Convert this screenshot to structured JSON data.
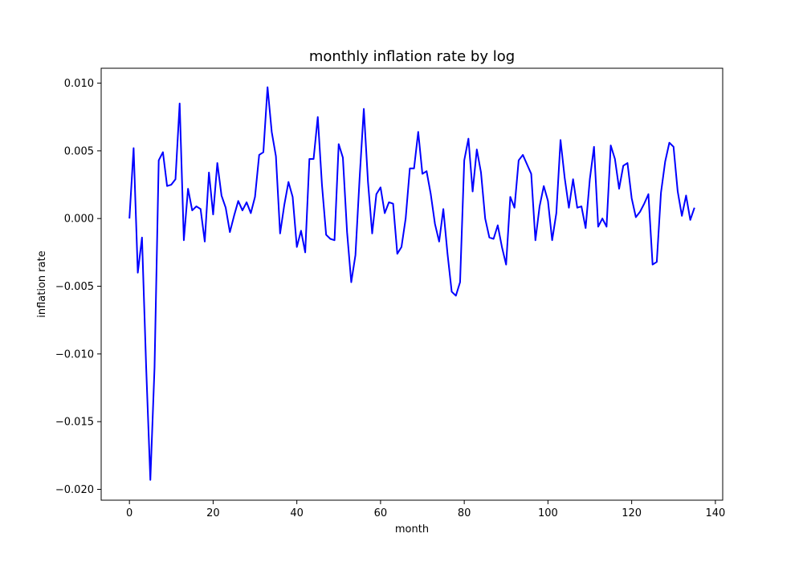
{
  "chart_data": {
    "type": "line",
    "title": "monthly inflation rate by log",
    "xlabel": "month",
    "ylabel": "inflation rate",
    "xlim": [
      -6.75,
      141.75
    ],
    "ylim": [
      -0.0208,
      0.0111
    ],
    "xticks": [
      0,
      20,
      40,
      60,
      80,
      100,
      120,
      140
    ],
    "xtick_labels": [
      "0",
      "20",
      "40",
      "60",
      "80",
      "100",
      "120",
      "140"
    ],
    "yticks": [
      0.01,
      0.005,
      0.0,
      -0.005,
      -0.01,
      -0.015,
      -0.02
    ],
    "ytick_labels": [
      "0.010",
      "0.005",
      "0.000",
      "−0.005",
      "−0.010",
      "−0.015",
      "−0.020"
    ],
    "grid": false,
    "legend": "none",
    "series": [
      {
        "color": "#0000ff",
        "x": [
          0,
          1,
          2,
          3,
          4,
          5,
          6,
          7,
          8,
          9,
          10,
          11,
          12,
          13,
          14,
          15,
          16,
          17,
          18,
          19,
          20,
          21,
          22,
          23,
          24,
          25,
          26,
          27,
          28,
          29,
          30,
          31,
          32,
          33,
          34,
          35,
          36,
          37,
          38,
          39,
          40,
          41,
          42,
          43,
          44,
          45,
          46,
          47,
          48,
          49,
          50,
          51,
          52,
          53,
          54,
          55,
          56,
          57,
          58,
          59,
          60,
          61,
          62,
          63,
          64,
          65,
          66,
          67,
          68,
          69,
          70,
          71,
          72,
          73,
          74,
          75,
          76,
          77,
          78,
          79,
          80,
          81,
          82,
          83,
          84,
          85,
          86,
          87,
          88,
          89,
          90,
          91,
          92,
          93,
          94,
          95,
          96,
          97,
          98,
          99,
          100,
          101,
          102,
          103,
          104,
          105,
          106,
          107,
          108,
          109,
          110,
          111,
          112,
          113,
          114,
          115,
          116,
          117,
          118,
          119,
          120,
          121,
          122,
          123,
          124,
          125,
          126,
          127,
          128,
          129,
          130,
          131,
          132,
          133,
          134,
          135
        ],
        "values": [
          0.0,
          0.0052,
          -0.004,
          -0.0014,
          -0.011,
          -0.0193,
          -0.011,
          0.0043,
          0.0049,
          0.0024,
          0.0025,
          0.0029,
          0.0085,
          -0.0016,
          0.0022,
          0.0006,
          0.0009,
          0.0007,
          -0.0017,
          0.0034,
          0.0003,
          0.0041,
          0.0017,
          0.0008,
          -0.001,
          0.0002,
          0.0013,
          0.0006,
          0.0012,
          0.0004,
          0.0016,
          0.0047,
          0.0049,
          0.0097,
          0.0064,
          0.0046,
          -0.0011,
          0.001,
          0.0027,
          0.0016,
          -0.0021,
          -0.0009,
          -0.0025,
          0.0044,
          0.0044,
          0.0075,
          0.0025,
          -0.0012,
          -0.0015,
          -0.0016,
          0.0055,
          0.0045,
          -0.001,
          -0.0047,
          -0.0027,
          0.003,
          0.0081,
          0.0027,
          -0.0011,
          0.0018,
          0.0023,
          0.0004,
          0.0012,
          0.0011,
          -0.0026,
          -0.0021,
          0.0,
          0.0037,
          0.0037,
          0.0064,
          0.0033,
          0.0035,
          0.0018,
          -0.0004,
          -0.0017,
          0.0007,
          -0.0026,
          -0.0054,
          -0.0057,
          -0.0047,
          0.0043,
          0.0059,
          0.002,
          0.0051,
          0.0034,
          0.0,
          -0.0014,
          -0.0015,
          -0.0005,
          -0.0021,
          -0.0034,
          0.0016,
          0.0008,
          0.0043,
          0.0047,
          0.004,
          0.0033,
          -0.0016,
          0.0009,
          0.0024,
          0.0013,
          -0.0016,
          0.0004,
          0.0058,
          0.003,
          0.0008,
          0.0029,
          0.0008,
          0.0009,
          -0.0007,
          0.0029,
          0.0053,
          -0.0006,
          0.0,
          -0.0006,
          0.0054,
          0.0044,
          0.0022,
          0.0039,
          0.0041,
          0.0015,
          0.0001,
          0.0005,
          0.0011,
          0.0018,
          -0.0034,
          -0.0032,
          0.0019,
          0.0042,
          0.0056,
          0.0053,
          0.002,
          0.0002,
          0.0017,
          -0.0001,
          0.0008
        ]
      }
    ]
  }
}
